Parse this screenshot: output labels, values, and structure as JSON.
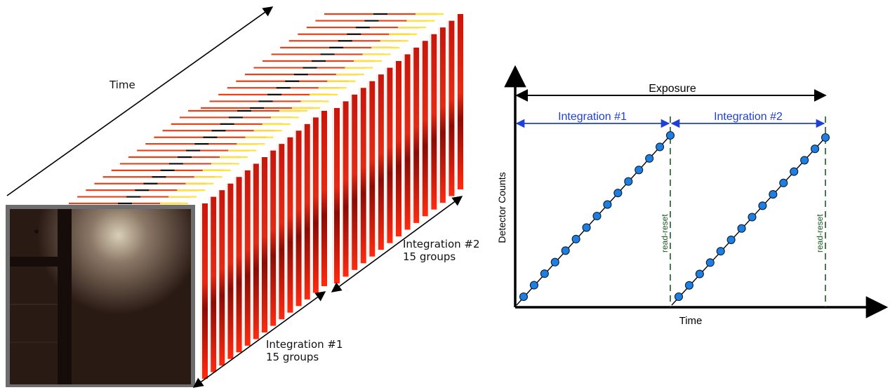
{
  "left_figure": {
    "time_label": "Time",
    "integration_1": {
      "title": "Integration #1",
      "groups": "15 groups",
      "frame_count": 15
    },
    "integration_2": {
      "title": "Integration #2",
      "groups": "15 groups",
      "frame_count": 15
    }
  },
  "right_figure": {
    "exposure_label": "Exposure",
    "integration_1_label": "Integration #1",
    "integration_2_label": "Integration #2",
    "ylabel": "Detector Counts",
    "xlabel": "Time",
    "reset_label_1": "read-reset",
    "reset_label_2": "read-reset",
    "points_per_ramp": 15,
    "colors": {
      "point_fill": "#1e7fe0",
      "point_stroke": "#0a1f3a",
      "span_arrow": "#1e3fd8",
      "reset_line": "#1d5a24",
      "reset_text": "#1d5a24"
    }
  }
}
